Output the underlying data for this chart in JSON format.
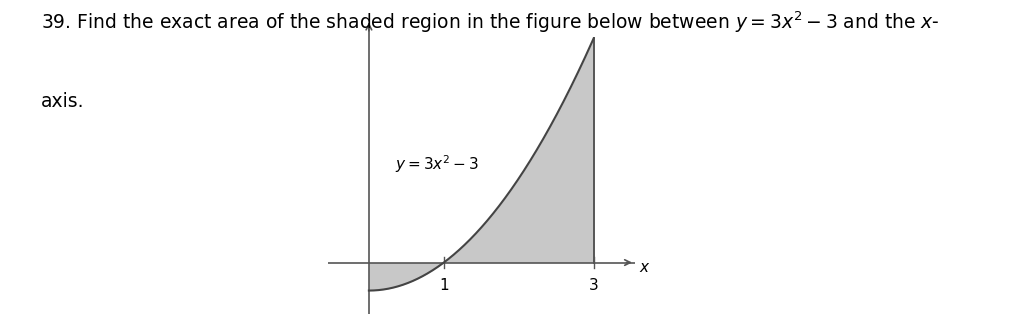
{
  "line1": "39. Find the exact area of the shaded region in the figure below between ⁠⁠⁠⁠⁠y⁠ = 3x² – 3 and the x-",
  "line2": "axis.",
  "curve_label": "y = 3x² – 3",
  "shade_color": "#c8c8c8",
  "curve_color": "#444444",
  "axis_color": "#555555",
  "background_color": "#ffffff",
  "x_label": "x",
  "x_min": -0.55,
  "x_max": 3.55,
  "y_min": -5.5,
  "y_max": 26.0,
  "figsize": [
    10.24,
    3.27
  ],
  "dpi": 100,
  "text_fontsize": 13.5,
  "label_fontsize": 11,
  "tick_fontsize": 11
}
